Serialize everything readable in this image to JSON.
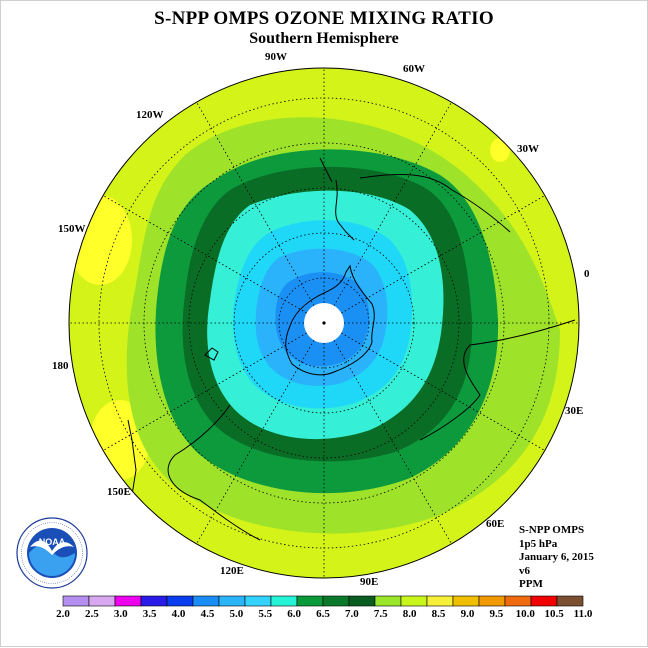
{
  "title": "S-NPP OMPS OZONE MIXING RATIO",
  "subtitle": "Southern Hemisphere",
  "longitude_labels": [
    "90W",
    "60W",
    "30W",
    "0",
    "30E",
    "60E",
    "90E",
    "120E",
    "150E",
    "180",
    "150W",
    "120W"
  ],
  "info": {
    "instrument": "S-NPP OMPS",
    "level": "1p5 hPa",
    "date": "January 6, 2015",
    "version": "v6",
    "units": "PPM"
  },
  "logo_text": "NOAA",
  "logo_ring_text": "NATIONAL OCEANIC AND ATMOSPHERIC ADMINISTRATION · U.S. DEPARTMENT OF COMMERCE",
  "colorbar": {
    "ticks": [
      "2.0",
      "2.5",
      "3.0",
      "3.5",
      "4.0",
      "4.5",
      "5.0",
      "5.5",
      "6.0",
      "6.5",
      "7.0",
      "7.5",
      "8.0",
      "8.5",
      "9.0",
      "9.5",
      "10.0",
      "10.5",
      "11.0"
    ],
    "colors": [
      "#b48ff0",
      "#d8a8f0",
      "#ee00ee",
      "#2a1ae8",
      "#0a3cf0",
      "#1a8cf5",
      "#2ab4fa",
      "#33d3ff",
      "#26f4d6",
      "#0a9a3a",
      "#0a7a2a",
      "#0a5d20",
      "#9ae62a",
      "#c8f51a",
      "#f7f03a",
      "#f0c000",
      "#f09a00",
      "#f06a10",
      "#f00000",
      "#7a5030"
    ]
  },
  "map_colors": {
    "fill_7_5": "#c6f01a",
    "fill_8_0": "#d4f419",
    "fill_8_5": "#ffff2a",
    "fill_7_0": "#9ee32a",
    "fill_6_5": "#0c9a3c",
    "fill_6_0": "#0a6d26",
    "fill_5_5": "#35efd6",
    "fill_5_0": "#1fd8f7",
    "fill_4_5": "#2ab2fb",
    "fill_4_0": "#1a90f5"
  }
}
